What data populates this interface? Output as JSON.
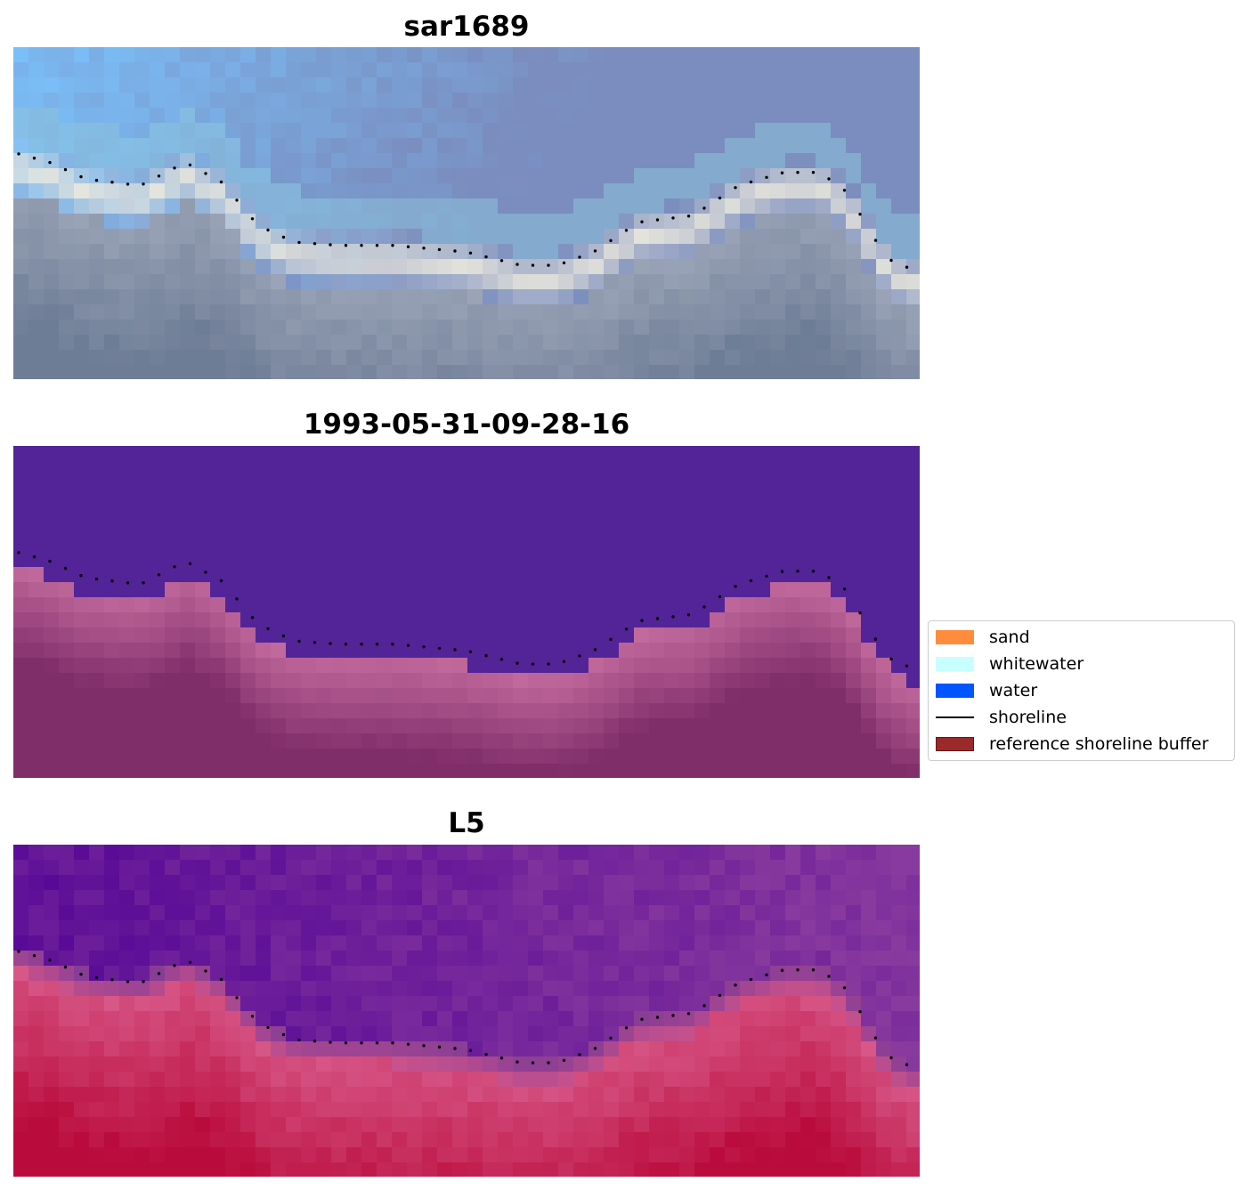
{
  "panels": [
    {
      "title": "sar1689",
      "style": "rgb"
    },
    {
      "title": "1993-05-31-09-28-16",
      "style": "classified"
    },
    {
      "title": "L5",
      "style": "index"
    }
  ],
  "legend": {
    "items": [
      {
        "label": "sand",
        "color": "#ff8c3c",
        "kind": "patch"
      },
      {
        "label": "whitewater",
        "color": "#c8ffff",
        "kind": "patch"
      },
      {
        "label": "water",
        "color": "#0055ff",
        "kind": "patch"
      },
      {
        "label": "shoreline",
        "color": "#000000",
        "kind": "line"
      },
      {
        "label": "reference shoreline buffer",
        "color": "#9a2a2a",
        "kind": "patch"
      }
    ]
  }
}
